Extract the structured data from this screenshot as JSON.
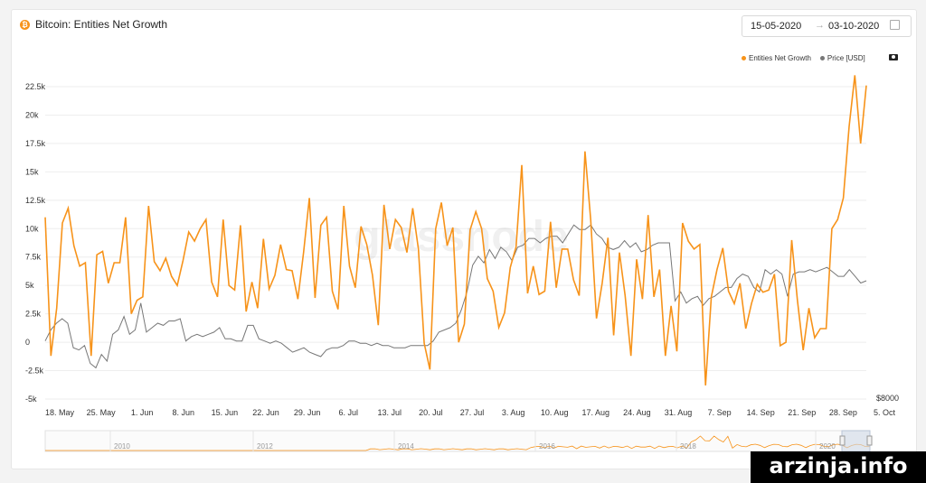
{
  "header": {
    "title": "Bitcoin: Entities Net Growth",
    "date_from": "15-05-2020",
    "date_arrow": "→",
    "date_to": "03-10-2020"
  },
  "legend": [
    {
      "label": "Entities Net Growth",
      "color": "#f7931a"
    },
    {
      "label": "Price [USD]",
      "color": "#777777"
    }
  ],
  "watermark_text": "glassnode",
  "site_watermark": "arzinja.info",
  "chart_data": {
    "type": "line",
    "y_ticks": [
      "22.5k",
      "20k",
      "17.5k",
      "15k",
      "12.5k",
      "10k",
      "7.5k",
      "5k",
      "2.5k",
      "0",
      "-2.5k",
      "-5k"
    ],
    "y_tick_values": [
      22500,
      20000,
      17500,
      15000,
      12500,
      10000,
      7500,
      5000,
      2500,
      0,
      -2500,
      -5000
    ],
    "ylim": [
      -5000,
      22500
    ],
    "x_ticks": [
      "18. May",
      "25. May",
      "1. Jun",
      "8. Jun",
      "15. Jun",
      "22. Jun",
      "29. Jun",
      "6. Jul",
      "13. Jul",
      "20. Jul",
      "27. Jul",
      "3. Aug",
      "10. Aug",
      "17. Aug",
      "24. Aug",
      "31. Aug",
      "7. Sep",
      "14. Sep",
      "21. Sep",
      "28. Sep",
      "5. Oct"
    ],
    "xlim_days": [
      0,
      143
    ],
    "right_axis_label": "$8000",
    "navigator_ticks": [
      "2010",
      "2012",
      "2014",
      "2016",
      "2018",
      "2020"
    ],
    "series": [
      {
        "name": "Entities Net Growth",
        "color": "#f7931a",
        "values": [
          11000,
          -1200,
          3000,
          10500,
          11800,
          8500,
          6700,
          7000,
          -1200,
          7700,
          8000,
          5200,
          7000,
          7000,
          11000,
          2500,
          3700,
          4000,
          12000,
          7100,
          6300,
          7400,
          5800,
          5000,
          7200,
          9700,
          8900,
          10000,
          10800,
          5300,
          4000,
          10800,
          5000,
          4600,
          10300,
          2700,
          5300,
          3000,
          9100,
          4700,
          5900,
          8600,
          6400,
          6300,
          3800,
          7900,
          12700,
          3900,
          10300,
          11000,
          4500,
          2900,
          12000,
          6700,
          4800,
          10200,
          8600,
          5900,
          1500,
          12100,
          8200,
          10800,
          10100,
          7900,
          11800,
          8200,
          -100,
          -2400,
          10000,
          12300,
          8500,
          10100,
          0,
          1600,
          9900,
          11500,
          10000,
          5600,
          4500,
          1300,
          2600,
          6600,
          8400,
          15600,
          4300,
          6700,
          4200,
          4500,
          10600,
          4800,
          8200,
          8200,
          5500,
          4100,
          16800,
          10800,
          2100,
          5200,
          9200,
          600,
          7900,
          4100,
          -1200,
          7300,
          3800,
          11200,
          4000,
          6400,
          -1200,
          3200,
          -800,
          10500,
          8900,
          8200,
          8600,
          -3800,
          4000,
          6400,
          8300,
          4500,
          3400,
          5200,
          1200,
          3400,
          5100,
          4400,
          4600,
          6000,
          -300,
          0,
          9000,
          3700,
          -700,
          3000,
          400,
          1200,
          1200,
          10000,
          10800,
          12700,
          19000,
          23500,
          17500,
          22600
        ]
      },
      {
        "name": "Price [USD]",
        "values": [
          9300,
          9550,
          9700,
          9800,
          9700,
          9150,
          9100,
          9200,
          8800,
          8700,
          9000,
          8850,
          9450,
          9550,
          9850,
          9450,
          9550,
          10150,
          9500,
          9600,
          9700,
          9650,
          9750,
          9750,
          9800,
          9300,
          9400,
          9450,
          9400,
          9450,
          9500,
          9600,
          9350,
          9350,
          9300,
          9300,
          9650,
          9650,
          9350,
          9300,
          9250,
          9300,
          9250,
          9150,
          9050,
          9100,
          9150,
          9050,
          9000,
          8950,
          9100,
          9150,
          9150,
          9200,
          9300,
          9300,
          9250,
          9250,
          9200,
          9250,
          9200,
          9200,
          9150,
          9150,
          9150,
          9200,
          9200,
          9200,
          9200,
          9300,
          9500,
          9550,
          9600,
          9700,
          10000,
          10400,
          11000,
          11200,
          11050,
          11350,
          11150,
          11400,
          11300,
          11100,
          11400,
          11450,
          11600,
          11600,
          11500,
          11600,
          11650,
          11650,
          11500,
          11700,
          11900,
          11800,
          11800,
          11900,
          11700,
          11600,
          11400,
          11350,
          11400,
          11550,
          11400,
          11500,
          11300,
          11350,
          11450,
          11500,
          11500,
          11500,
          10200,
          10400,
          10150,
          10250,
          10300,
          10100,
          10250,
          10300,
          10400,
          10500,
          10500,
          10700,
          10800,
          10750,
          10500,
          10400,
          10900,
          10800,
          10900,
          10800,
          10300,
          10800,
          10850,
          10850,
          10900,
          10850,
          10900,
          10950,
          10850,
          10750,
          10750,
          10900,
          10750,
          10600,
          10650
        ]
      }
    ]
  }
}
